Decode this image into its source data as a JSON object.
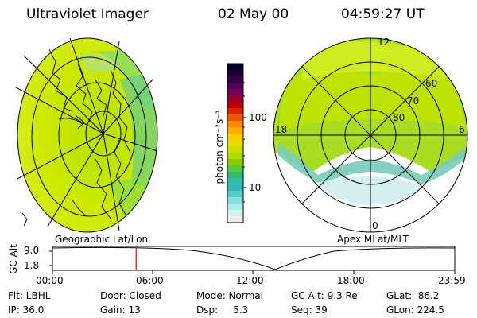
{
  "header": {
    "instrument": "Ultraviolet Imager",
    "date": "02 May 00",
    "time": "04:59:27 UT"
  },
  "colorbar": {
    "unit_label": "photon cm⁻²s⁻¹",
    "ticks": [
      "100",
      "10"
    ],
    "colors": [
      "#000033",
      "#1a0033",
      "#330044",
      "#550055",
      "#770055",
      "#990033",
      "#bb0000",
      "#dd2200",
      "#ee5500",
      "#ff8800",
      "#ffaa00",
      "#ffcc00",
      "#eedd00",
      "#ccdd00",
      "#aadd00",
      "#88cc00",
      "#55cc33",
      "#33bb66",
      "#33bbaa",
      "#33bbbb",
      "#55cccc",
      "#88dddd",
      "#aaeeee",
      "#ccf5f5",
      "#eeeeee"
    ]
  },
  "left_panel": {
    "label": "Geographic Lat/Lon"
  },
  "right_panel": {
    "label": "Apex MLat/MLT",
    "mlt_labels": {
      "top": "12",
      "left": "18",
      "right": "6",
      "bottom": "0"
    },
    "lat_labels": [
      "80",
      "70",
      "60"
    ]
  },
  "timeline": {
    "axis_title": "GC Alt",
    "y_ticks": [
      "9.0",
      "1.8"
    ],
    "x_ticks": [
      "00:00",
      "06:00",
      "12:00",
      "18:00",
      "23:59"
    ],
    "cursor_fraction": 0.208,
    "cursor_color": "#ff0000"
  },
  "info": {
    "row1": {
      "flt": "Flt: LBHL",
      "door": "Door: Closed",
      "mode": "Mode: Normal",
      "gcalt": "GC Alt: 9.3 Re",
      "glat": "GLat:  86.2"
    },
    "row2": {
      "ip": "IP: 36.0",
      "gain": "Gain: 13",
      "dsp": "Dsp:     5.3",
      "seq": "Seq: 39",
      "glon": "GLon: 224.5"
    }
  }
}
